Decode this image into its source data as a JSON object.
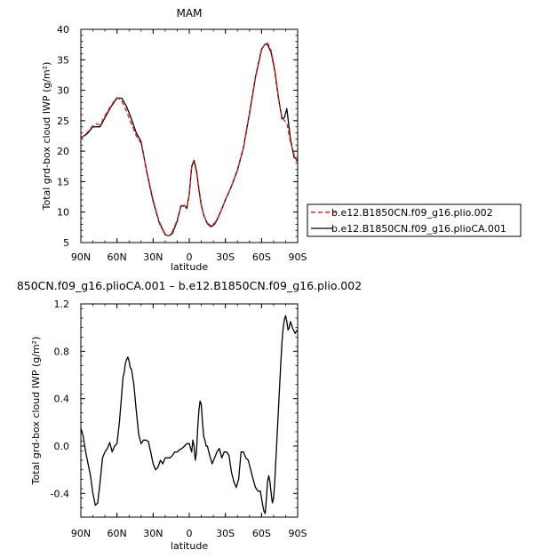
{
  "chart_data": [
    {
      "type": "line",
      "title": "MAM",
      "xlabel": "latitude",
      "ylabel": "Total grd-box cloud IWP (g/m²)",
      "xlim": [
        90,
        -90
      ],
      "ylim": [
        5,
        40
      ],
      "xticks": [
        90,
        60,
        30,
        0,
        -30,
        -60,
        -90
      ],
      "xticklabels": [
        "90N",
        "60N",
        "30N",
        "0",
        "30S",
        "60S",
        "90S"
      ],
      "yticks": [
        5,
        10,
        15,
        20,
        25,
        30,
        35,
        40
      ],
      "yticklabels": [
        "5",
        "10",
        "15",
        "20",
        "25",
        "30",
        "35",
        "40"
      ],
      "legend": "right",
      "series": [
        {
          "name": "b.e12.B1850CN.f09_g16.plio.002",
          "color": "#e8251f",
          "dash": "dashed",
          "x": [
            90,
            85,
            80,
            77,
            74,
            70,
            65,
            60,
            56,
            52,
            48,
            44,
            40,
            35,
            30,
            25,
            20,
            17,
            14,
            10,
            7,
            4,
            2,
            0,
            -2,
            -4,
            -6,
            -8,
            -10,
            -12,
            -15,
            -18,
            -21,
            -24,
            -27,
            -30,
            -35,
            -40,
            -45,
            -50,
            -55,
            -60,
            -63,
            -65,
            -68,
            -71,
            -74,
            -77,
            -79,
            -81,
            -84,
            -87,
            -90
          ],
          "y": [
            22,
            23,
            24.2,
            24.5,
            24.3,
            25.8,
            27.5,
            28.8,
            28.2,
            26.5,
            24.5,
            22.5,
            21.3,
            16.5,
            12,
            8.5,
            6.4,
            6.1,
            6.8,
            8.7,
            10.9,
            11,
            10.8,
            13,
            17.3,
            18.2,
            16.5,
            13.5,
            11,
            9.5,
            8.2,
            7.8,
            8.2,
            9.2,
            10.5,
            12,
            14.2,
            16.8,
            20.5,
            26,
            32,
            36.5,
            37.7,
            37.8,
            36.5,
            33.5,
            29,
            25.5,
            25,
            24.7,
            21.5,
            19.5,
            18
          ]
        },
        {
          "name": "b.e12.B1850CN.f09_g16.plioCA.001",
          "color": "#000000",
          "dash": "solid",
          "x": [
            90,
            85,
            80,
            77,
            74,
            70,
            65,
            60,
            56,
            52,
            48,
            44,
            40,
            35,
            30,
            25,
            20,
            17,
            14,
            10,
            7,
            4,
            2,
            0,
            -2,
            -4,
            -6,
            -8,
            -10,
            -12,
            -15,
            -18,
            -21,
            -24,
            -27,
            -30,
            -35,
            -40,
            -45,
            -50,
            -55,
            -60,
            -63,
            -65,
            -68,
            -71,
            -74,
            -77,
            -79,
            -81,
            -84,
            -87,
            -90
          ],
          "y": [
            22.2,
            22.8,
            24,
            24,
            24,
            25.5,
            27.3,
            28.7,
            28.7,
            27.3,
            25.3,
            23,
            21.6,
            16.3,
            11.8,
            8.3,
            6.3,
            6.1,
            6.5,
            8.5,
            11,
            11.1,
            10.6,
            13,
            17.5,
            18.5,
            16.8,
            13.8,
            11.2,
            9.5,
            8.1,
            7.6,
            8,
            9.1,
            10.5,
            12,
            14.2,
            16.9,
            20.6,
            26.2,
            32.2,
            36.7,
            37.6,
            37.5,
            36.2,
            33.2,
            28.8,
            25.3,
            25.5,
            27,
            22,
            19,
            18.5
          ]
        }
      ]
    },
    {
      "type": "line",
      "title": "850CN.f09_g16.plioCA.001 – b.e12.B1850CN.f09_g16.plio.002",
      "xlabel": "latitude",
      "ylabel": "Total grd-box cloud IWP (g/m²)",
      "xlim": [
        90,
        -90
      ],
      "ylim": [
        -0.6,
        1.2
      ],
      "xticks": [
        90,
        60,
        30,
        0,
        -30,
        -60,
        -90
      ],
      "xticklabels": [
        "90N",
        "60N",
        "30N",
        "0",
        "30S",
        "60S",
        "90S"
      ],
      "yticks": [
        -0.4,
        0,
        0.4,
        0.8,
        1.2
      ],
      "yticklabels": [
        "-0.4",
        "0.0",
        "0.4",
        "0.8",
        "1.2"
      ],
      "series": [
        {
          "color": "#000000",
          "dash": "solid",
          "x": [
            90,
            88,
            86,
            84,
            82,
            80,
            78,
            76,
            74,
            72,
            70,
            68,
            66,
            64,
            62,
            60,
            58,
            56,
            55,
            54,
            53,
            52,
            51,
            50,
            49,
            48,
            46,
            44,
            42,
            40,
            38,
            36,
            34,
            32,
            30,
            28,
            26,
            24,
            22,
            20,
            18,
            16,
            14,
            12,
            10,
            8,
            6,
            4,
            2,
            0,
            -2,
            -3,
            -4,
            -5,
            -6,
            -7,
            -8,
            -9,
            -10,
            -11,
            -12,
            -13,
            -14,
            -15,
            -17,
            -19,
            -21,
            -23,
            -25,
            -27,
            -29,
            -31,
            -33,
            -35,
            -37,
            -39,
            -41,
            -43,
            -45,
            -47,
            -49,
            -51,
            -53,
            -55,
            -57,
            -59,
            -61,
            -62,
            -63,
            -64,
            -65,
            -66,
            -67,
            -68,
            -69,
            -70,
            -71,
            -72,
            -73,
            -74,
            -75,
            -76,
            -77,
            -78,
            -79,
            -80,
            -81,
            -82,
            -83,
            -84,
            -85,
            -86,
            -87,
            -88,
            -89,
            -90
          ],
          "y": [
            0.15,
            0.08,
            -0.05,
            -0.15,
            -0.25,
            -0.4,
            -0.5,
            -0.48,
            -0.3,
            -0.1,
            -0.05,
            -0.02,
            0.03,
            -0.05,
            0,
            0.02,
            0.2,
            0.45,
            0.58,
            0.62,
            0.7,
            0.73,
            0.75,
            0.72,
            0.66,
            0.65,
            0.52,
            0.3,
            0.1,
            0.02,
            0.05,
            0.05,
            0.04,
            -0.05,
            -0.15,
            -0.2,
            -0.18,
            -0.12,
            -0.15,
            -0.1,
            -0.1,
            -0.1,
            -0.08,
            -0.05,
            -0.05,
            -0.03,
            -0.02,
            0,
            0.02,
            0.02,
            -0.05,
            0.05,
            0,
            -0.12,
            -0.05,
            0.15,
            0.3,
            0.38,
            0.35,
            0.2,
            0.08,
            0.05,
            0,
            0,
            -0.08,
            -0.15,
            -0.1,
            -0.05,
            -0.02,
            -0.1,
            -0.05,
            -0.05,
            -0.08,
            -0.22,
            -0.3,
            -0.35,
            -0.28,
            -0.05,
            -0.05,
            -0.1,
            -0.12,
            -0.2,
            -0.28,
            -0.35,
            -0.38,
            -0.38,
            -0.5,
            -0.55,
            -0.57,
            -0.45,
            -0.3,
            -0.25,
            -0.3,
            -0.4,
            -0.48,
            -0.44,
            -0.3,
            -0.1,
            0.1,
            0.3,
            0.5,
            0.7,
            0.88,
            1.0,
            1.07,
            1.1,
            1.05,
            0.98,
            1.0,
            1.05,
            1.02,
            0.99,
            0.97,
            0.95,
            0.97,
            0.98
          ]
        }
      ]
    }
  ]
}
